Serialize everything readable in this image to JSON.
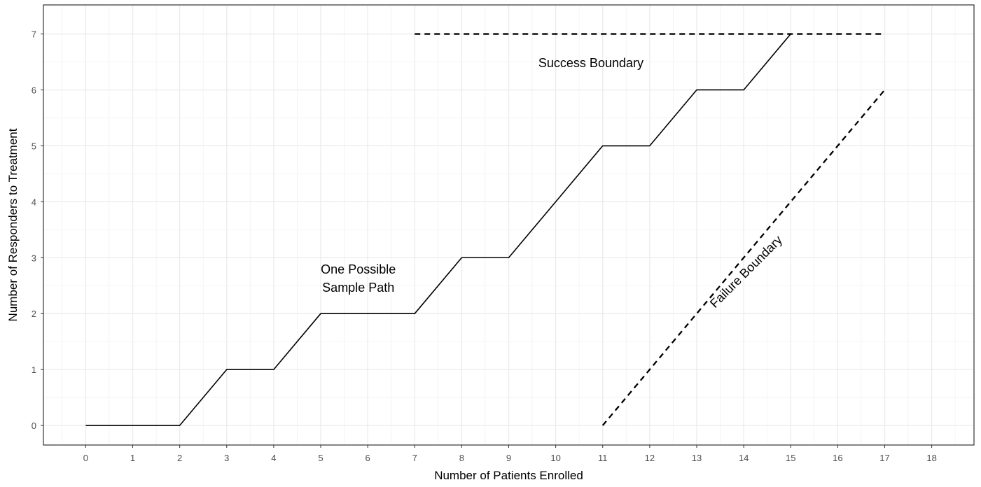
{
  "chart_data": {
    "type": "line",
    "xlabel": "Number of Patients Enrolled",
    "ylabel": "Number of Responders to Treatment",
    "xlim": [
      -0.9,
      18.9
    ],
    "ylim": [
      -0.35,
      7.52
    ],
    "x_ticks": [
      0,
      1,
      2,
      3,
      4,
      5,
      6,
      7,
      8,
      9,
      10,
      11,
      12,
      13,
      14,
      15,
      16,
      17,
      18
    ],
    "y_ticks": [
      0,
      1,
      2,
      3,
      4,
      5,
      6,
      7
    ],
    "grid": true,
    "series": [
      {
        "name": "One Possible Sample Path",
        "style": "solid",
        "color": "#000000",
        "x": [
          0,
          1,
          2,
          3,
          4,
          5,
          6,
          7,
          8,
          9,
          10,
          11,
          12,
          13,
          14,
          15
        ],
        "y": [
          0,
          0,
          0,
          1,
          1,
          2,
          2,
          2,
          3,
          3,
          4,
          5,
          5,
          6,
          6,
          7
        ]
      },
      {
        "name": "Success Boundary",
        "style": "dashed",
        "color": "#000000",
        "x": [
          7,
          17
        ],
        "y": [
          7,
          7
        ]
      },
      {
        "name": "Failure Boundary",
        "style": "dashed",
        "color": "#000000",
        "x": [
          11,
          17
        ],
        "y": [
          0,
          6
        ]
      }
    ],
    "annotations": [
      {
        "id": "success",
        "lines": [
          "Success Boundary"
        ],
        "x": 10.75,
        "y": 6.48,
        "rotate": 0
      },
      {
        "id": "path",
        "lines": [
          "One Possible",
          "Sample Path"
        ],
        "x": 5.8,
        "y": 2.63,
        "rotate": 0
      },
      {
        "id": "failure",
        "lines": [
          "Failure Boundary"
        ],
        "x": 14.05,
        "y": 2.75,
        "rotate": -45
      }
    ]
  }
}
